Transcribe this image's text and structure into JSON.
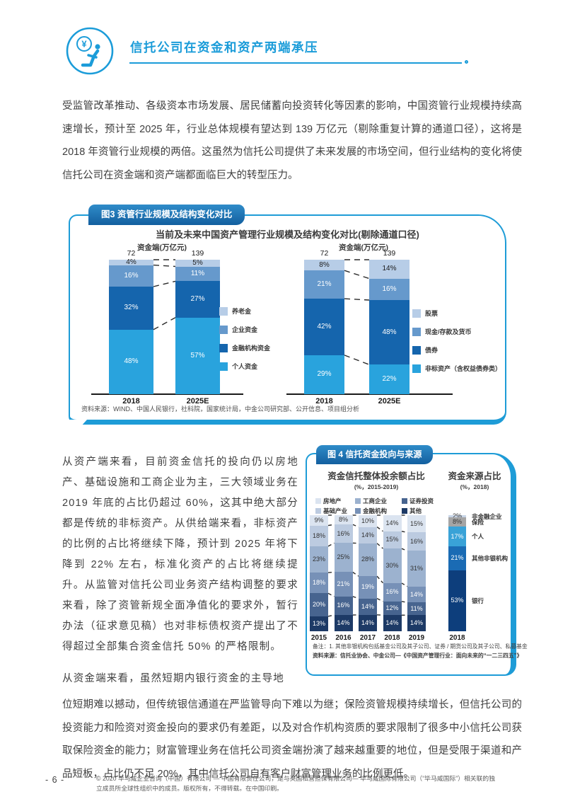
{
  "header": {
    "title": "信托公司在资金和资产两端承压"
  },
  "paragraphs": {
    "p1": "受监管改革推动、各级资本市场发展、居民储蓄向投资转化等因素的影响，中国资管行业规模持续高速增长，预计至 2025 年，行业总体规模有望达到 139 万亿元（剔除重复计算的通道口径），这将是 2018 年资管行业规模的两倍。这虽然为信托公司提供了未来发展的市场空间，但行业结构的变化将使信托公司在资金端和资产端都面临巨大的转型压力。",
    "p2": "从资产端来看，目前资金信托的投向仍以房地产、基础设施和工商企业为主，三大领域业务在 2019 年底的占比仍超过 60%，这其中绝大部分都是传统的非标资产。从供给端来看，非标资产的比例的占比将继续下降，预计到 2025 年将下降到 22% 左右，标准化资产的占比将继续提升。从监管对信托公司业务资产结构调整的要求来看，除了资管新规全面净值化的要求外，暂行办法（征求意见稿）也对非标债权资产提出了不得超过全部集合资金信托 50% 的严格限制。",
    "p3_first": "从资金端来看，虽然短期内银行资金的主导地",
    "p3_rest": "位短期难以撼动，但传统银信通道在严监管导向下难以为继；保险资管规模持续增长，但信托公司的投资能力和险资对资金投向的要求仍有差距，以及对合作机构资质的要求限制了很多中小信托公司获取保险资金的能力；财富管理业务在信托公司资金端扮演了越来越重要的地位，但是受限于渠道和产品短板，占比仍不足 20%，其中信托公司自有客户财富管理业务的比例更低。"
  },
  "figure3": {
    "tab": "图3 资管行业规模及结构变化对比",
    "title": "当前及未来中国资产管理行业规模及结构变化对比(剔除通道口径)",
    "unit_left": "资金端(万亿元)",
    "unit_right": "资金端(万亿元)",
    "source": "资料来源：WIND、中国人民银行，社科院，国家统计局，中金公司研究部、公开信息、项目组分析"
  },
  "figure4": {
    "tab": "图 4 信托资金投向与来源",
    "left_title": "资金信托整体投余额占比",
    "left_subtitle": "(%，2015-2019)",
    "right_title": "资金来源占比",
    "right_subtitle": "(%，2018)",
    "note": "备注：1. 其他非银机构包括基金公司及其子公司、证券 / 期货公司及其子公司、私募基金",
    "source": "资料来源：信托业协会、中金公司—《中国资产管理行业：面向未来的“一二三四五”》"
  },
  "footer": {
    "page_number": "- 6 -",
    "copyright": "© 2020 毕马威企业咨询（中国）有限公司 — 中国有限责任公司，是与英国私营担保有限公司— 毕马威国际有限公司（“毕马威国际”）相关联的独立成员所全球性组织中的成员。版权所有，不得转载。在中国印刷。"
  },
  "accent_colors": {
    "azure": "#1e9cd7",
    "tab_blue": "#135f9f"
  },
  "chart_data": [
    {
      "id": "fig3-left",
      "type": "bar",
      "stacked": true,
      "title": "资金端(万亿元)",
      "categories": [
        "2018",
        "2025E"
      ],
      "totals": [
        "72",
        "139"
      ],
      "legend_mount": "lg3l",
      "legend_position": "right",
      "series": [
        {
          "name": "养老金",
          "color": "#b7cde7",
          "label_color": "#1a1a1a",
          "values": [
            4,
            5
          ]
        },
        {
          "name": "企业资金",
          "color": "#6699cc",
          "label_color": "#ffffff",
          "values": [
            16,
            11
          ]
        },
        {
          "name": "金融机构资金",
          "color": "#1565ad",
          "label_color": "#ffffff",
          "values": [
            32,
            27
          ]
        },
        {
          "name": "个人资金",
          "color": "#29a3dd",
          "label_color": "#ffffff",
          "values": [
            48,
            57
          ]
        }
      ]
    },
    {
      "id": "fig3-right",
      "type": "bar",
      "stacked": true,
      "title": "资金端(万亿元)",
      "categories": [
        "2018",
        "2025E"
      ],
      "totals": [
        "72",
        "139"
      ],
      "legend_mount": "lg3r",
      "legend_position": "right",
      "series": [
        {
          "name": "股票",
          "color": "#b7cde7",
          "label_color": "#1a1a1a",
          "values": [
            8,
            14
          ]
        },
        {
          "name": "现金/存款及货币",
          "color": "#6699cc",
          "label_color": "#ffffff",
          "values": [
            21,
            16
          ]
        },
        {
          "name": "债券",
          "color": "#1565ad",
          "label_color": "#ffffff",
          "values": [
            42,
            48
          ]
        },
        {
          "name": "非标资产（含权益债券类）",
          "color": "#29a3dd",
          "label_color": "#ffffff",
          "values": [
            29,
            22
          ]
        }
      ]
    },
    {
      "id": "fig4-left",
      "type": "bar",
      "stacked": true,
      "title": "资金信托整体投余额占比",
      "subtitle": "(%，2015-2019)",
      "categories": [
        "2015",
        "2016",
        "2017",
        "2018",
        "2019"
      ],
      "legend_mount": "lg4",
      "legend_order": [
        "房地产",
        "工商企业",
        "证券投资",
        "基础产业",
        "金融机构",
        "其他"
      ],
      "series": [
        {
          "name": "房地产",
          "color": "#dbe4f0",
          "label_color": "#333333",
          "values": [
            9,
            8,
            10,
            14,
            15
          ]
        },
        {
          "name": "基础产业",
          "color": "#bccbe0",
          "label_color": "#333333",
          "values": [
            18,
            16,
            14,
            15,
            16
          ]
        },
        {
          "name": "工商企业",
          "color": "#9cb2cf",
          "label_color": "#333333",
          "values": [
            23,
            25,
            28,
            30,
            31
          ]
        },
        {
          "name": "金融机构",
          "color": "#7791b7",
          "label_color": "#ffffff",
          "values": [
            18,
            21,
            19,
            16,
            14
          ]
        },
        {
          "name": "证券投资",
          "color": "#47648f",
          "label_color": "#ffffff",
          "values": [
            20,
            16,
            14,
            12,
            11
          ]
        },
        {
          "name": "其他",
          "color": "#1d3a66",
          "label_color": "#ffffff",
          "values": [
            13,
            14,
            14,
            14,
            14
          ]
        }
      ]
    },
    {
      "id": "fig4-right",
      "type": "bar",
      "stacked": true,
      "title": "资金来源占比",
      "subtitle": "(%，2018)",
      "categories": [
        "2018"
      ],
      "series": [
        {
          "name": "非金融企业",
          "color": "#c9d6e8",
          "label_color": "#333333",
          "values": [
            2
          ]
        },
        {
          "name": "保险",
          "color": "#a5a5a5",
          "label_color": "#333333",
          "values": [
            8
          ]
        },
        {
          "name": "个人",
          "color": "#39a2d7",
          "label_color": "#ffffff",
          "values": [
            17
          ]
        },
        {
          "name": "其他非银机构",
          "color": "#1a6bb4",
          "label_color": "#ffffff",
          "values": [
            21
          ]
        },
        {
          "name": "银行",
          "color": "#0d3e7c",
          "label_color": "#ffffff",
          "values": [
            53
          ]
        }
      ]
    }
  ]
}
